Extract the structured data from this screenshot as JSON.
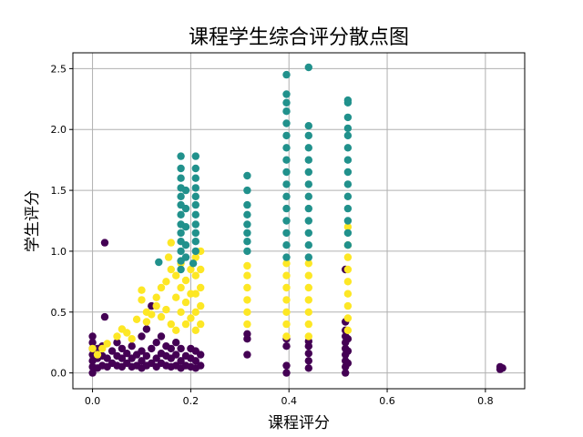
{
  "chart_data": {
    "type": "scatter",
    "title": "课程学生综合评分散点图",
    "xlabel": "课程评分",
    "ylabel": "学生评分",
    "xlim": [
      -0.04,
      0.88
    ],
    "ylim": [
      -0.13,
      2.63
    ],
    "xticks": [
      0.0,
      0.2,
      0.4,
      0.6,
      0.8
    ],
    "yticks": [
      0.0,
      0.5,
      1.0,
      1.5,
      2.0,
      2.5
    ],
    "grid": true,
    "legend": "none",
    "series": [
      {
        "color": "#440154",
        "points": [
          [
            0.0,
            0.0
          ],
          [
            0.0,
            0.05
          ],
          [
            0.0,
            0.1
          ],
          [
            0.0,
            0.15
          ],
          [
            0.0,
            0.2
          ],
          [
            0.0,
            0.25
          ],
          [
            0.0,
            0.3
          ],
          [
            0.01,
            0.04
          ],
          [
            0.01,
            0.12
          ],
          [
            0.01,
            0.2
          ],
          [
            0.02,
            0.06
          ],
          [
            0.02,
            0.14
          ],
          [
            0.02,
            0.22
          ],
          [
            0.025,
            1.07
          ],
          [
            0.025,
            0.46
          ],
          [
            0.03,
            0.05
          ],
          [
            0.03,
            0.12
          ],
          [
            0.04,
            0.08
          ],
          [
            0.04,
            0.18
          ],
          [
            0.05,
            0.06
          ],
          [
            0.05,
            0.14
          ],
          [
            0.05,
            0.25
          ],
          [
            0.06,
            0.05
          ],
          [
            0.06,
            0.12
          ],
          [
            0.06,
            0.2
          ],
          [
            0.07,
            0.08
          ],
          [
            0.07,
            0.16
          ],
          [
            0.08,
            0.05
          ],
          [
            0.08,
            0.12
          ],
          [
            0.08,
            0.22
          ],
          [
            0.09,
            0.06
          ],
          [
            0.09,
            0.15
          ],
          [
            0.1,
            0.04
          ],
          [
            0.1,
            0.1
          ],
          [
            0.1,
            0.18
          ],
          [
            0.1,
            0.3
          ],
          [
            0.11,
            0.06
          ],
          [
            0.11,
            0.14
          ],
          [
            0.11,
            0.36
          ],
          [
            0.12,
            0.08
          ],
          [
            0.12,
            0.2
          ],
          [
            0.12,
            0.55
          ],
          [
            0.13,
            0.05
          ],
          [
            0.13,
            0.12
          ],
          [
            0.13,
            0.25
          ],
          [
            0.14,
            0.08
          ],
          [
            0.14,
            0.16
          ],
          [
            0.14,
            0.3
          ],
          [
            0.15,
            0.06
          ],
          [
            0.15,
            0.14
          ],
          [
            0.15,
            0.22
          ],
          [
            0.16,
            0.05
          ],
          [
            0.16,
            0.12
          ],
          [
            0.16,
            0.2
          ],
          [
            0.17,
            0.06
          ],
          [
            0.17,
            0.15
          ],
          [
            0.17,
            0.25
          ],
          [
            0.18,
            0.04
          ],
          [
            0.18,
            0.1
          ],
          [
            0.18,
            0.2
          ],
          [
            0.19,
            0.06
          ],
          [
            0.19,
            0.14
          ],
          [
            0.2,
            0.05
          ],
          [
            0.2,
            0.12
          ],
          [
            0.2,
            0.2
          ],
          [
            0.21,
            0.04
          ],
          [
            0.21,
            0.1
          ],
          [
            0.21,
            0.18
          ],
          [
            0.22,
            0.06
          ],
          [
            0.22,
            0.15
          ],
          [
            0.315,
            0.15
          ],
          [
            0.315,
            0.28
          ],
          [
            0.315,
            0.32
          ],
          [
            0.395,
            0.0
          ],
          [
            0.395,
            0.06
          ],
          [
            0.395,
            0.22
          ],
          [
            0.395,
            0.28
          ],
          [
            0.44,
            0.04
          ],
          [
            0.44,
            0.1
          ],
          [
            0.44,
            0.16
          ],
          [
            0.44,
            0.22
          ],
          [
            0.44,
            0.26
          ],
          [
            0.515,
            0.0
          ],
          [
            0.515,
            0.05
          ],
          [
            0.515,
            0.1
          ],
          [
            0.515,
            0.15
          ],
          [
            0.515,
            0.2
          ],
          [
            0.515,
            0.25
          ],
          [
            0.515,
            0.3
          ],
          [
            0.515,
            0.35
          ],
          [
            0.515,
            0.42
          ],
          [
            0.515,
            0.85
          ],
          [
            0.52,
            0.08
          ],
          [
            0.52,
            0.18
          ],
          [
            0.52,
            0.28
          ],
          [
            0.83,
            0.03
          ],
          [
            0.83,
            0.05
          ],
          [
            0.835,
            0.04
          ]
        ]
      },
      {
        "color": "#fde725",
        "points": [
          [
            0.0,
            0.2
          ],
          [
            0.01,
            0.15
          ],
          [
            0.02,
            0.2
          ],
          [
            0.03,
            0.24
          ],
          [
            0.05,
            0.3
          ],
          [
            0.06,
            0.36
          ],
          [
            0.07,
            0.33
          ],
          [
            0.08,
            0.28
          ],
          [
            0.09,
            0.44
          ],
          [
            0.1,
            0.6
          ],
          [
            0.1,
            0.68
          ],
          [
            0.11,
            0.5
          ],
          [
            0.11,
            0.42
          ],
          [
            0.12,
            0.48
          ],
          [
            0.13,
            0.55
          ],
          [
            0.13,
            0.62
          ],
          [
            0.14,
            0.46
          ],
          [
            0.14,
            0.7
          ],
          [
            0.15,
            0.75
          ],
          [
            0.15,
            0.52
          ],
          [
            0.155,
            0.95
          ],
          [
            0.16,
            0.85
          ],
          [
            0.16,
            1.07
          ],
          [
            0.16,
            0.4
          ],
          [
            0.17,
            0.62
          ],
          [
            0.17,
            0.8
          ],
          [
            0.17,
            0.35
          ],
          [
            0.18,
            0.5
          ],
          [
            0.18,
            0.7
          ],
          [
            0.18,
            0.9
          ],
          [
            0.19,
            0.4
          ],
          [
            0.19,
            0.58
          ],
          [
            0.19,
            0.76
          ],
          [
            0.2,
            0.45
          ],
          [
            0.2,
            0.65
          ],
          [
            0.2,
            0.85
          ],
          [
            0.21,
            0.35
          ],
          [
            0.21,
            0.5
          ],
          [
            0.21,
            0.65
          ],
          [
            0.21,
            0.8
          ],
          [
            0.21,
            0.95
          ],
          [
            0.22,
            0.4
          ],
          [
            0.22,
            0.55
          ],
          [
            0.22,
            0.7
          ],
          [
            0.22,
            0.85
          ],
          [
            0.22,
            1.0
          ],
          [
            0.315,
            0.4
          ],
          [
            0.315,
            0.5
          ],
          [
            0.315,
            0.6
          ],
          [
            0.315,
            0.7
          ],
          [
            0.315,
            0.8
          ],
          [
            0.315,
            0.88
          ],
          [
            0.395,
            0.3
          ],
          [
            0.395,
            0.4
          ],
          [
            0.395,
            0.5
          ],
          [
            0.395,
            0.6
          ],
          [
            0.395,
            0.7
          ],
          [
            0.395,
            0.8
          ],
          [
            0.395,
            0.9
          ],
          [
            0.44,
            0.3
          ],
          [
            0.44,
            0.4
          ],
          [
            0.44,
            0.5
          ],
          [
            0.44,
            0.6
          ],
          [
            0.44,
            0.7
          ],
          [
            0.44,
            0.8
          ],
          [
            0.44,
            0.9
          ],
          [
            0.52,
            0.35
          ],
          [
            0.52,
            0.45
          ],
          [
            0.52,
            0.55
          ],
          [
            0.52,
            0.65
          ],
          [
            0.52,
            0.75
          ],
          [
            0.52,
            0.85
          ],
          [
            0.52,
            0.95
          ],
          [
            0.52,
            1.05
          ],
          [
            0.52,
            1.2
          ]
        ]
      },
      {
        "color": "#21918c",
        "points": [
          [
            0.135,
            0.91
          ],
          [
            0.18,
            0.85
          ],
          [
            0.18,
            0.92
          ],
          [
            0.18,
            1.0
          ],
          [
            0.18,
            1.08
          ],
          [
            0.18,
            1.15
          ],
          [
            0.18,
            1.22
          ],
          [
            0.18,
            1.3
          ],
          [
            0.18,
            1.38
          ],
          [
            0.18,
            1.45
          ],
          [
            0.18,
            1.52
          ],
          [
            0.18,
            1.6
          ],
          [
            0.18,
            1.68
          ],
          [
            0.18,
            1.78
          ],
          [
            0.19,
            0.95
          ],
          [
            0.19,
            1.05
          ],
          [
            0.19,
            1.2
          ],
          [
            0.19,
            1.35
          ],
          [
            0.19,
            1.5
          ],
          [
            0.205,
            0.9
          ],
          [
            0.21,
            1.0
          ],
          [
            0.21,
            1.08
          ],
          [
            0.21,
            1.15
          ],
          [
            0.21,
            1.22
          ],
          [
            0.21,
            1.3
          ],
          [
            0.21,
            1.38
          ],
          [
            0.21,
            1.45
          ],
          [
            0.21,
            1.52
          ],
          [
            0.21,
            1.6
          ],
          [
            0.21,
            1.68
          ],
          [
            0.21,
            1.78
          ],
          [
            0.315,
            1.0
          ],
          [
            0.315,
            1.08
          ],
          [
            0.315,
            1.15
          ],
          [
            0.315,
            1.22
          ],
          [
            0.315,
            1.3
          ],
          [
            0.315,
            1.38
          ],
          [
            0.315,
            1.5
          ],
          [
            0.315,
            1.62
          ],
          [
            0.395,
            0.95
          ],
          [
            0.395,
            1.05
          ],
          [
            0.395,
            1.15
          ],
          [
            0.395,
            1.25
          ],
          [
            0.395,
            1.35
          ],
          [
            0.395,
            1.45
          ],
          [
            0.395,
            1.55
          ],
          [
            0.395,
            1.65
          ],
          [
            0.395,
            1.75
          ],
          [
            0.395,
            1.85
          ],
          [
            0.395,
            1.95
          ],
          [
            0.395,
            2.05
          ],
          [
            0.395,
            2.15
          ],
          [
            0.395,
            2.22
          ],
          [
            0.395,
            2.29
          ],
          [
            0.395,
            2.45
          ],
          [
            0.44,
            0.95
          ],
          [
            0.44,
            1.05
          ],
          [
            0.44,
            1.15
          ],
          [
            0.44,
            1.25
          ],
          [
            0.44,
            1.35
          ],
          [
            0.44,
            1.45
          ],
          [
            0.44,
            1.55
          ],
          [
            0.44,
            1.65
          ],
          [
            0.44,
            1.75
          ],
          [
            0.44,
            1.85
          ],
          [
            0.44,
            1.95
          ],
          [
            0.44,
            2.03
          ],
          [
            0.44,
            2.51
          ],
          [
            0.52,
            1.05
          ],
          [
            0.52,
            1.15
          ],
          [
            0.52,
            1.25
          ],
          [
            0.52,
            1.35
          ],
          [
            0.52,
            1.45
          ],
          [
            0.52,
            1.55
          ],
          [
            0.52,
            1.65
          ],
          [
            0.52,
            1.75
          ],
          [
            0.52,
            1.85
          ],
          [
            0.52,
            1.95
          ],
          [
            0.52,
            2.01
          ],
          [
            0.52,
            2.1
          ],
          [
            0.52,
            2.22
          ],
          [
            0.52,
            2.24
          ]
        ]
      }
    ]
  }
}
